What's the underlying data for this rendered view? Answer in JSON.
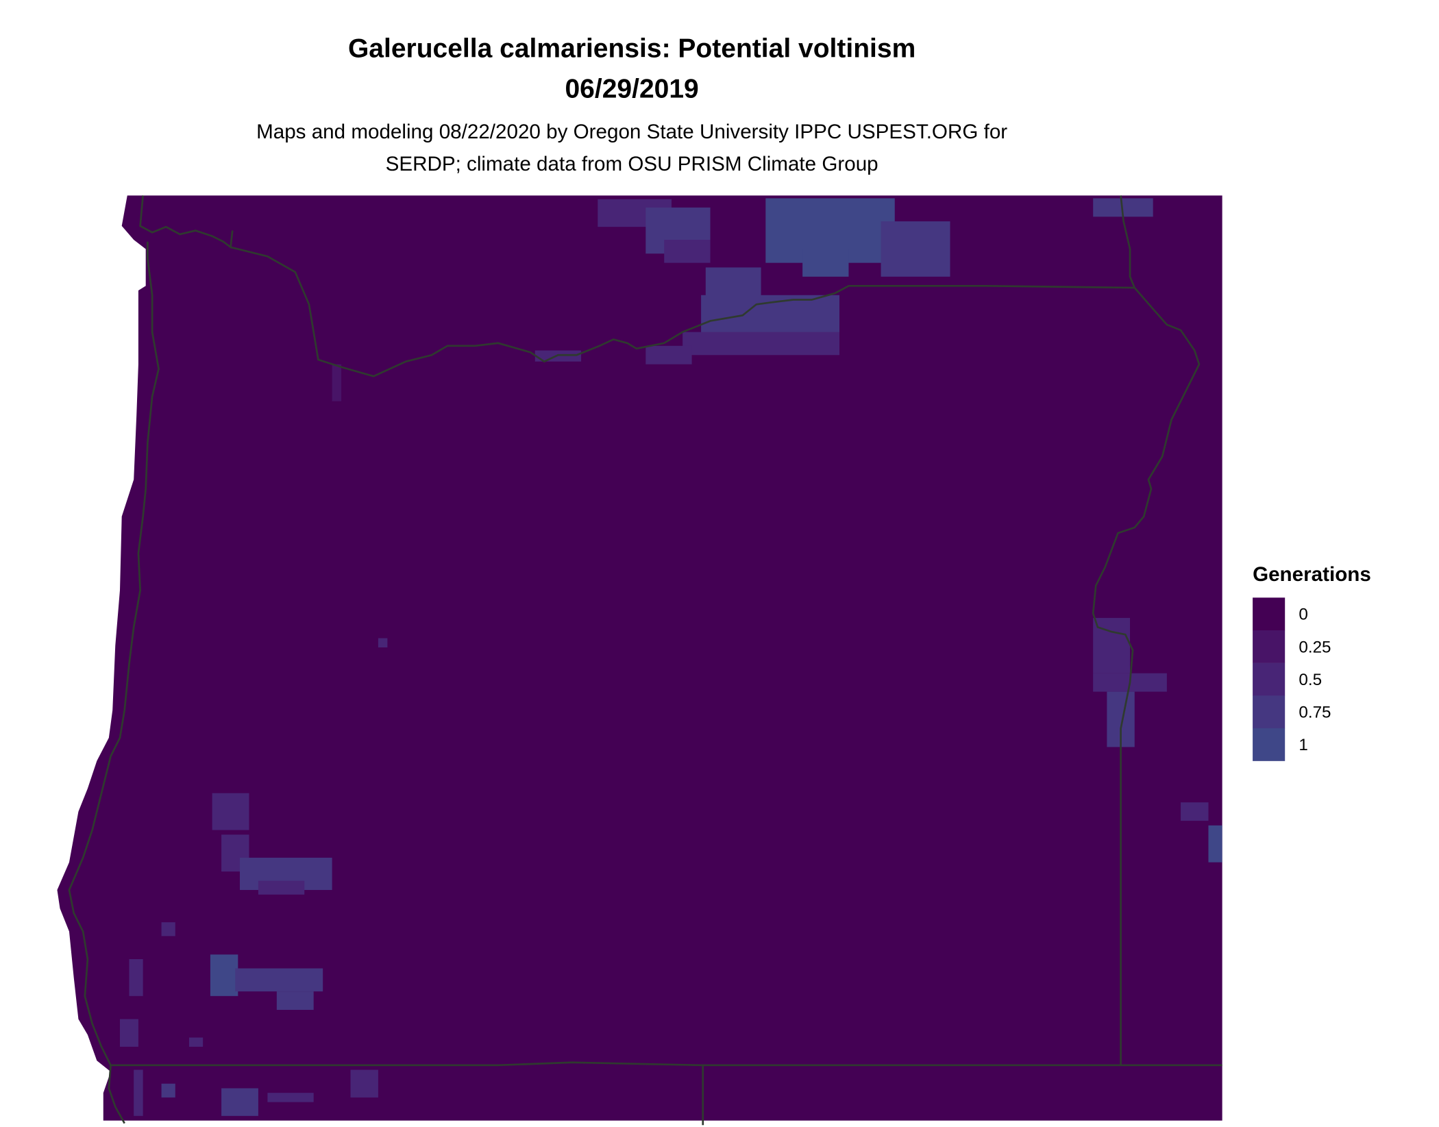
{
  "title": "Galerucella calmariensis: Potential voltinism",
  "date": "06/29/2019",
  "subtitle_line1": "Maps and modeling 08/22/2020 by Oregon State University IPPC USPEST.ORG for",
  "subtitle_line2": "SERDP; climate data from OSU PRISM Climate Group",
  "legend": {
    "title": "Generations",
    "items": [
      {
        "label": "0",
        "color": "#440154"
      },
      {
        "label": "0.25",
        "color": "#481467"
      },
      {
        "label": "0.5",
        "color": "#482576"
      },
      {
        "label": "0.75",
        "color": "#453781"
      },
      {
        "label": "1",
        "color": "#3F4788"
      }
    ]
  },
  "colors": {
    "background_raster": "#440154",
    "border_line": "#2F3A2F"
  }
}
